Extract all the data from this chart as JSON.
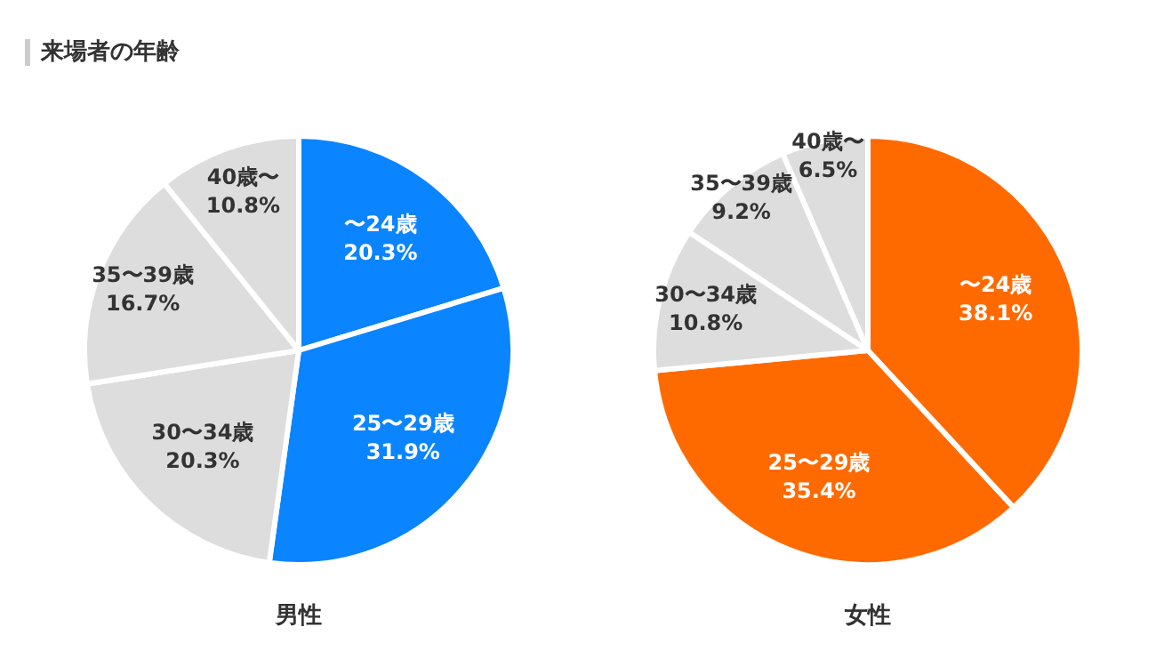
{
  "chart_data": [
    {
      "type": "pie",
      "title": "来場者の年齢",
      "xlabel": "男性",
      "categories": [
        "〜24歳",
        "25〜29歳",
        "30〜34歳",
        "35〜39歳",
        "40歳〜"
      ],
      "values": [
        20.3,
        31.9,
        20.3,
        16.7,
        10.8
      ],
      "colors": [
        "#0a84ff",
        "#0a84ff",
        "#dddddd",
        "#dddddd",
        "#dddddd"
      ],
      "value_labels": [
        "20.3%",
        "31.9%",
        "20.3%",
        "16.7%",
        "10.8%"
      ],
      "legend": false
    },
    {
      "type": "pie",
      "xlabel": "女性",
      "categories": [
        "〜24歳",
        "25〜29歳",
        "30〜34歳",
        "35〜39歳",
        "40歳〜"
      ],
      "values": [
        38.1,
        35.4,
        10.8,
        9.2,
        6.5
      ],
      "colors": [
        "#ff6a00",
        "#ff6a00",
        "#dddddd",
        "#dddddd",
        "#dddddd"
      ],
      "value_labels": [
        "38.1%",
        "35.4%",
        "10.8%",
        "9.2%",
        "6.5%"
      ],
      "legend": false
    }
  ]
}
